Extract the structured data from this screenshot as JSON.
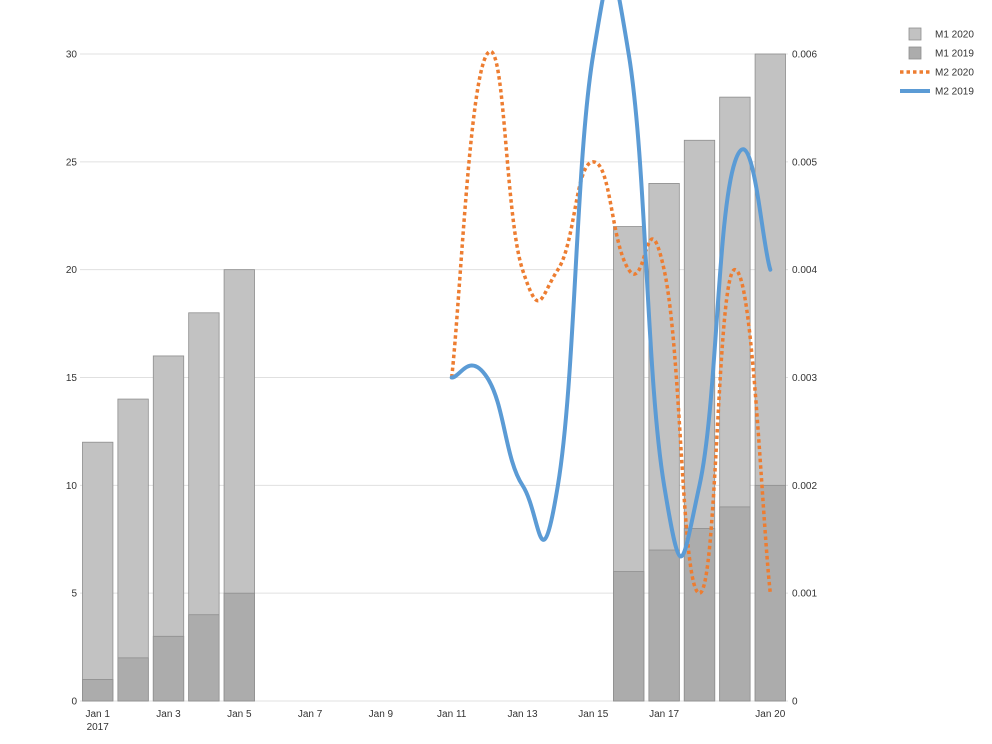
{
  "chart_data": {
    "type": "bar",
    "x_axis": {
      "type": "date",
      "start": "2017-01-01",
      "end": "2017-01-20",
      "tick_labels": [
        {
          "date": "2017-01-01",
          "label": "Jan 1",
          "sublabel": "2017"
        },
        {
          "date": "2017-01-03",
          "label": "Jan 3"
        },
        {
          "date": "2017-01-05",
          "label": "Jan 5"
        },
        {
          "date": "2017-01-07",
          "label": "Jan 7"
        },
        {
          "date": "2017-01-09",
          "label": "Jan 9"
        },
        {
          "date": "2017-01-11",
          "label": "Jan 11"
        },
        {
          "date": "2017-01-13",
          "label": "Jan 13"
        },
        {
          "date": "2017-01-15",
          "label": "Jan 15"
        },
        {
          "date": "2017-01-17",
          "label": "Jan 17"
        },
        {
          "date": "2017-01-20",
          "label": "Jan 20"
        }
      ]
    },
    "y_left": {
      "range": [
        0,
        30
      ],
      "ticks": [
        "0",
        "5",
        "10",
        "15",
        "20",
        "25",
        "30"
      ]
    },
    "y_right": {
      "range": [
        0,
        0.006
      ],
      "ticks": [
        "0",
        "0.001",
        "0.002",
        "0.003",
        "0.004",
        "0.005",
        "0.006"
      ]
    },
    "grid": true,
    "legend_position": "top-right",
    "series": [
      {
        "name": "M1 2020",
        "kind": "bar",
        "axis": "left",
        "color": "#c2c2c2",
        "points": [
          {
            "x": "2017-01-01",
            "y": 12
          },
          {
            "x": "2017-01-02",
            "y": 14
          },
          {
            "x": "2017-01-03",
            "y": 16
          },
          {
            "x": "2017-01-04",
            "y": 18
          },
          {
            "x": "2017-01-05",
            "y": 20
          },
          {
            "x": "2017-01-16",
            "y": 22
          },
          {
            "x": "2017-01-17",
            "y": 24
          },
          {
            "x": "2017-01-18",
            "y": 26
          },
          {
            "x": "2017-01-19",
            "y": 28
          },
          {
            "x": "2017-01-20",
            "y": 30
          }
        ]
      },
      {
        "name": "M1 2019",
        "kind": "bar",
        "axis": "left",
        "color": "#acacac",
        "points": [
          {
            "x": "2017-01-01",
            "y": 1
          },
          {
            "x": "2017-01-02",
            "y": 2
          },
          {
            "x": "2017-01-03",
            "y": 3
          },
          {
            "x": "2017-01-04",
            "y": 4
          },
          {
            "x": "2017-01-05",
            "y": 5
          },
          {
            "x": "2017-01-16",
            "y": 6
          },
          {
            "x": "2017-01-17",
            "y": 7
          },
          {
            "x": "2017-01-18",
            "y": 8
          },
          {
            "x": "2017-01-19",
            "y": 9
          },
          {
            "x": "2017-01-20",
            "y": 10
          }
        ]
      },
      {
        "name": "M2 2020",
        "kind": "line",
        "axis": "right",
        "color": "#ed7d31",
        "dash": "dotted",
        "points": [
          {
            "x": "2017-01-11",
            "y": 0.003
          },
          {
            "x": "2017-01-12",
            "y": 0.006
          },
          {
            "x": "2017-01-13",
            "y": 0.004
          },
          {
            "x": "2017-01-14",
            "y": 0.004
          },
          {
            "x": "2017-01-15",
            "y": 0.005
          },
          {
            "x": "2017-01-16",
            "y": 0.004
          },
          {
            "x": "2017-01-17",
            "y": 0.004
          },
          {
            "x": "2017-01-18",
            "y": 0.001
          },
          {
            "x": "2017-01-19",
            "y": 0.004
          },
          {
            "x": "2017-01-20",
            "y": 0.001
          }
        ]
      },
      {
        "name": "M2 2019",
        "kind": "line",
        "axis": "right",
        "color": "#5b9bd5",
        "dash": "solid",
        "points": [
          {
            "x": "2017-01-11",
            "y": 0.003
          },
          {
            "x": "2017-01-12",
            "y": 0.003
          },
          {
            "x": "2017-01-13",
            "y": 0.002
          },
          {
            "x": "2017-01-14",
            "y": 0.002
          },
          {
            "x": "2017-01-15",
            "y": 0.006
          },
          {
            "x": "2017-01-16",
            "y": 0.006
          },
          {
            "x": "2017-01-17",
            "y": 0.002
          },
          {
            "x": "2017-01-18",
            "y": 0.002
          },
          {
            "x": "2017-01-19",
            "y": 0.005
          },
          {
            "x": "2017-01-20",
            "y": 0.004
          }
        ]
      }
    ]
  }
}
